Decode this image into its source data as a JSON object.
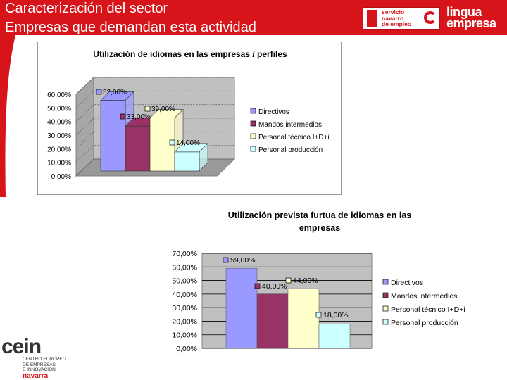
{
  "header": {
    "title_line1": "Caracterización del sector",
    "title_line2": "Empresas que demandan esta actividad",
    "colors": {
      "header_bg": "#d7141a"
    }
  },
  "logos": {
    "sne_text": "servicio\nnavarro\nde empleo",
    "le_line1": "lingua",
    "le_line2": "empresa",
    "cein_mark": "cein",
    "cein_sub": "CENTRO EUROPEO\nDE EMPRESAS\nE INNOVACIÓN",
    "cein_nav": "navarra"
  },
  "chart_data": [
    {
      "type": "bar",
      "title": "Utilización de idiomas en las empresas / perfiles",
      "ylim": [
        0,
        60
      ],
      "yticks": [
        "0,00%",
        "10,00%",
        "20,00%",
        "30,00%",
        "40,00%",
        "50,00%",
        "60,00%"
      ],
      "legend_position": "right",
      "series": [
        {
          "name": "Directivos",
          "value": 52,
          "label": "52,00%",
          "color": "#9999ff"
        },
        {
          "name": "Mandos intermedios",
          "value": 33,
          "label": "33,00%",
          "color": "#993366"
        },
        {
          "name": "Personal técnico I+D+i",
          "value": 39,
          "label": "39,00%",
          "color": "#ffffcc"
        },
        {
          "name": "Personal producción",
          "value": 14,
          "label": "14,00%",
          "color": "#ccffff"
        }
      ]
    },
    {
      "type": "bar",
      "title": "Utilización prevista furtua de idiomas en las empresas",
      "title_line1": "Utilización prevista furtua de idiomas en las",
      "title_line2": "empresas",
      "ylim": [
        0,
        70
      ],
      "yticks": [
        "0,00%",
        "10,00%",
        "20,00%",
        "30,00%",
        "40,00%",
        "50,00%",
        "60,00%",
        "70,00%"
      ],
      "legend_position": "right",
      "series": [
        {
          "name": "Directivos",
          "value": 59,
          "label": "59,00%",
          "color": "#9999ff"
        },
        {
          "name": "Mandos intermedios",
          "value": 40,
          "label": "40,00%",
          "color": "#993366"
        },
        {
          "name": "Personal técnico I+D+i",
          "value": 44,
          "label": "44,00%",
          "color": "#ffffcc"
        },
        {
          "name": "Personal producción",
          "value": 18,
          "label": "18,00%",
          "color": "#ccffff"
        }
      ]
    }
  ]
}
